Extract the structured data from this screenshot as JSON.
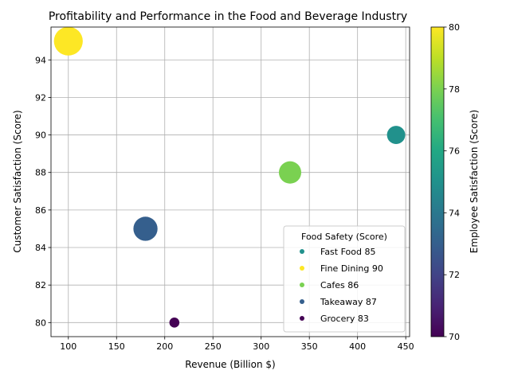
{
  "chart_data": {
    "type": "scatter",
    "title": "Profitability and Performance in the Food and Beverage Industry",
    "xlabel": "Revenue (Billion $)",
    "ylabel": "Customer Satisfaction (Score)",
    "colorbar_label": "Employee Satisfaction (Score)",
    "legend_title": "Food Safety (Score)",
    "legend_position": "lower right",
    "xlim": [
      82,
      454
    ],
    "ylim": [
      79.25,
      95.75
    ],
    "xticks": [
      100,
      150,
      200,
      250,
      300,
      350,
      400,
      450
    ],
    "yticks": [
      80,
      82,
      84,
      86,
      88,
      90,
      92,
      94
    ],
    "colorbar_range": [
      70,
      80
    ],
    "colorbar_ticks": [
      70,
      72,
      74,
      76,
      78,
      80
    ],
    "colormap": "viridis",
    "grid": true,
    "points": [
      {
        "category": "Fast Food",
        "revenue": 440,
        "customer_satisfaction": 90,
        "employee_satisfaction": 75,
        "food_safety": 85,
        "size": 2
      },
      {
        "category": "Fine Dining",
        "revenue": 100,
        "customer_satisfaction": 95,
        "employee_satisfaction": 80,
        "food_safety": 90,
        "size": 5
      },
      {
        "category": "Cafes",
        "revenue": 330,
        "customer_satisfaction": 88,
        "employee_satisfaction": 78,
        "food_safety": 86,
        "size": 3
      },
      {
        "category": "Takeaway",
        "revenue": 180,
        "customer_satisfaction": 85,
        "employee_satisfaction": 73,
        "food_safety": 87,
        "size": 3.5
      },
      {
        "category": "Grocery",
        "revenue": 210,
        "customer_satisfaction": 80,
        "employee_satisfaction": 70,
        "food_safety": 83,
        "size": 0.6
      }
    ],
    "legend_entries": [
      "Fast Food 85",
      "Fine Dining 90",
      "Cafes 86",
      "Takeaway 87",
      "Grocery 83"
    ]
  }
}
